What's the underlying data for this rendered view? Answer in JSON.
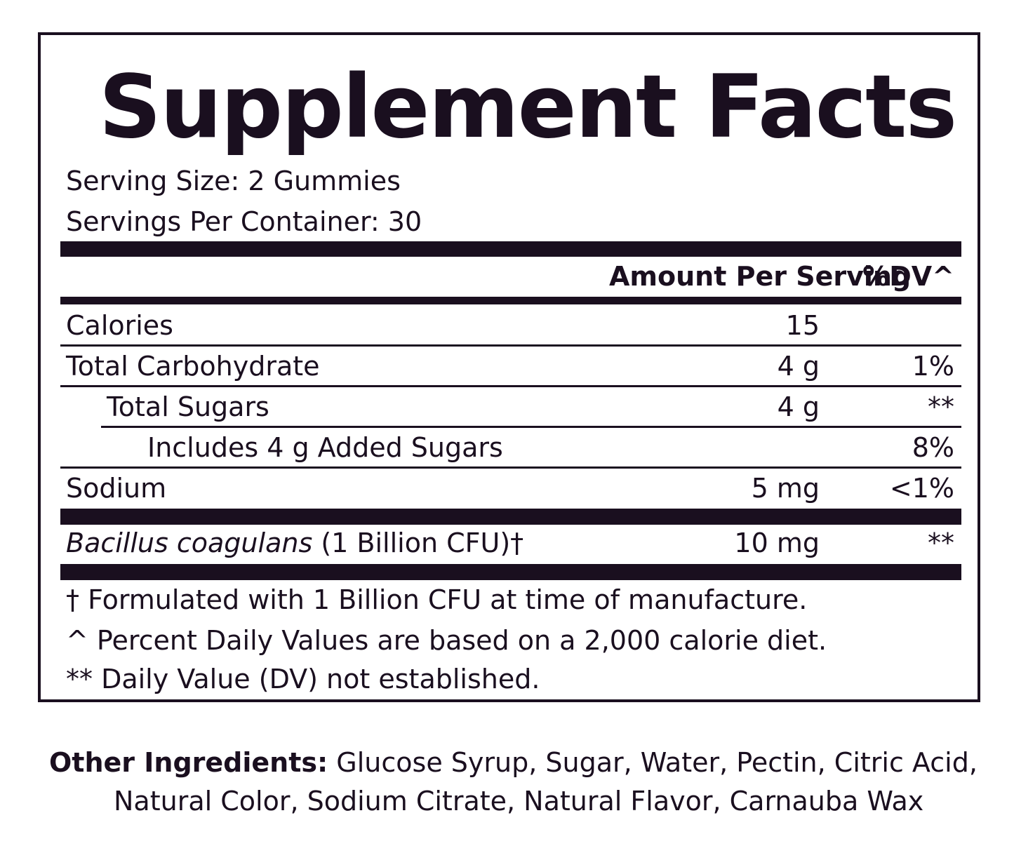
{
  "title": "Supplement Facts",
  "serving_size": "Serving Size: 2 Gummies",
  "servings_per_container": "Servings Per Container: 30",
  "header": {
    "amount": "Amount Per Serving",
    "dv": "%DV^"
  },
  "rows": [
    {
      "name": "Calories",
      "amount": "15",
      "dv": ""
    },
    {
      "name": "Total Carbohydrate",
      "amount": "4 g",
      "dv": "1%"
    },
    {
      "name": "Total Sugars",
      "amount": "4 g",
      "dv": "**"
    },
    {
      "name": "Includes 4 g Added Sugars",
      "amount": "",
      "dv": "8%"
    },
    {
      "name": "Sodium",
      "amount": "5 mg",
      "dv": "<1%"
    }
  ],
  "probiotic": {
    "name": "Bacillus coagulans",
    "detail": "(1 Billion CFU)†",
    "amount": "10 mg",
    "dv": "**"
  },
  "footnotes": [
    "† Formulated with 1 Billion CFU at time of manufacture.",
    "^ Percent Daily Values are based on a 2,000 calorie diet.",
    "** Daily Value (DV) not established."
  ],
  "other_ingredients": {
    "label": "Other Ingredients:",
    "line1": "Glucose Syrup, Sugar, Water, Pectin, Citric Acid,",
    "line2": "Natural Color, Sodium Citrate, Natural Flavor, Carnauba Wax"
  }
}
